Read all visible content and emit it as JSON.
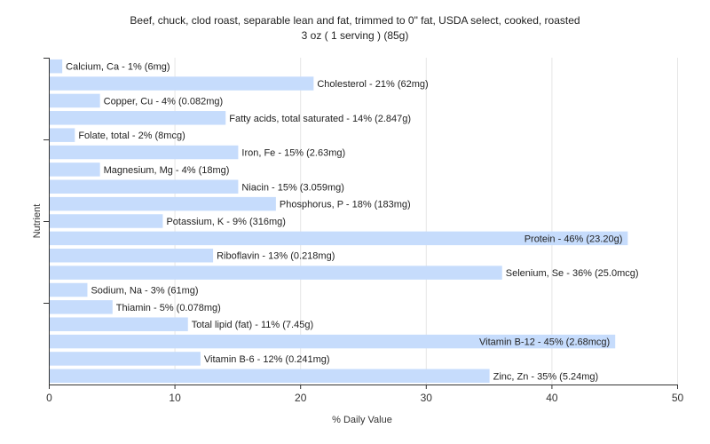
{
  "chart_data": {
    "type": "bar",
    "orientation": "horizontal",
    "title": "Beef, chuck, clod roast, separable lean and fat, trimmed to 0\" fat, USDA select, cooked, roasted",
    "subtitle": "3 oz ( 1 serving ) (85g)",
    "xlabel": "% Daily Value",
    "ylabel": "Nutrient",
    "xlim": [
      0,
      50
    ],
    "xticks": [
      0,
      10,
      20,
      30,
      40,
      50
    ],
    "grid": true,
    "bar_color": "#c6dcfc",
    "categories": [
      "Calcium, Ca",
      "Cholesterol",
      "Copper, Cu",
      "Fatty acids, total saturated",
      "Folate, total",
      "Iron, Fe",
      "Magnesium, Mg",
      "Niacin",
      "Phosphorus, P",
      "Potassium, K",
      "Protein",
      "Riboflavin",
      "Selenium, Se",
      "Sodium, Na",
      "Thiamin",
      "Total lipid (fat)",
      "Vitamin B-12",
      "Vitamin B-6",
      "Zinc, Zn"
    ],
    "values": [
      1,
      21,
      4,
      14,
      2,
      15,
      4,
      15,
      18,
      9,
      46,
      13,
      36,
      3,
      5,
      11,
      45,
      12,
      35
    ],
    "labels": [
      "Calcium, Ca - 1% (6mg)",
      "Cholesterol - 21% (62mg)",
      "Copper, Cu - 4% (0.082mg)",
      "Fatty acids, total saturated - 14% (2.847g)",
      "Folate, total - 2% (8mcg)",
      "Iron, Fe - 15% (2.63mg)",
      "Magnesium, Mg - 4% (18mg)",
      "Niacin - 15% (3.059mg)",
      "Phosphorus, P - 18% (183mg)",
      "Potassium, K - 9% (316mg)",
      "Protein - 46% (23.20g)",
      "Riboflavin - 13% (0.218mg)",
      "Selenium, Se - 36% (25.0mcg)",
      "Sodium, Na - 3% (61mg)",
      "Thiamin - 5% (0.078mg)",
      "Total lipid (fat) - 11% (7.45g)",
      "Vitamin B-12 - 45% (2.68mcg)",
      "Vitamin B-6 - 12% (0.241mg)",
      "Zinc, Zn - 35% (5.24mg)"
    ]
  }
}
